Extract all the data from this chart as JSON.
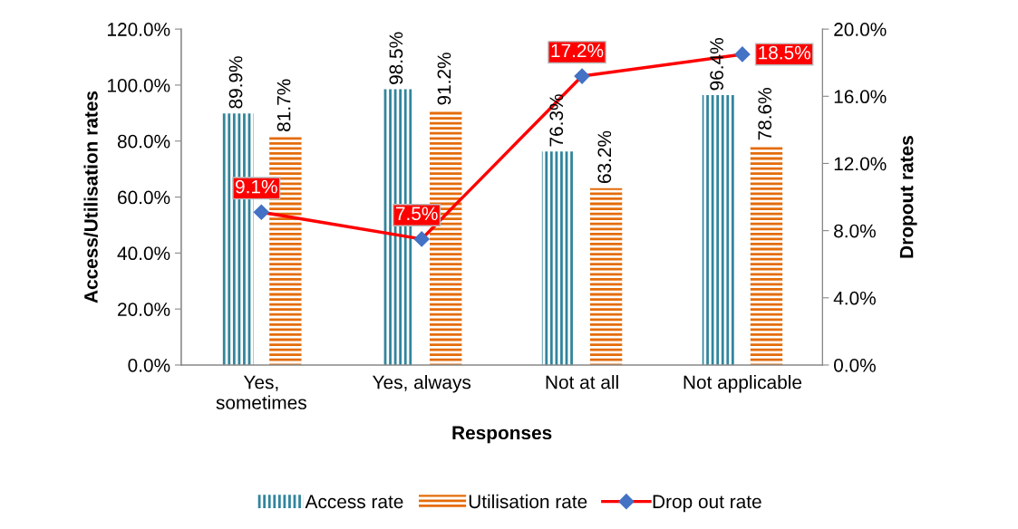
{
  "chart_data": {
    "type": "bar",
    "xlabel": "Responses",
    "ylabel": "Access/Utilisation rates",
    "y2label": "Dropout rates",
    "categories": [
      "Yes,\nsometimes",
      "Yes, always",
      "Not at all",
      "Not applicable"
    ],
    "series": [
      {
        "name": "Access rate",
        "color": "#31859c",
        "values": [
          89.9,
          98.5,
          76.3,
          96.4
        ],
        "value_labels": [
          "89.9%",
          "98.5%",
          "76.3%",
          "96.4%"
        ]
      },
      {
        "name": "Utilisation rate",
        "color": "#e46c0a",
        "values": [
          81.7,
          91.2,
          63.2,
          78.6
        ],
        "value_labels": [
          "81.7%",
          "91.2%",
          "63.2%",
          "78.6%"
        ]
      },
      {
        "name": "Drop out rate",
        "type": "line",
        "axis": "y2",
        "color": "#ff0000",
        "marker": "diamond",
        "values": [
          9.1,
          7.5,
          17.2,
          18.5
        ],
        "value_labels": [
          "9.1%",
          "7.5%",
          "17.2%",
          "18.5%"
        ]
      }
    ],
    "ylim": [
      0,
      120
    ],
    "yticks": [
      {
        "value": 0,
        "label": "0.0%"
      },
      {
        "value": 20,
        "label": "20.0%"
      },
      {
        "value": 40,
        "label": "40.0%"
      },
      {
        "value": 60,
        "label": "60.0%"
      },
      {
        "value": 80,
        "label": "80.0%"
      },
      {
        "value": 100,
        "label": "100.0%"
      },
      {
        "value": 120,
        "label": "120.0%"
      }
    ],
    "y2lim": [
      0,
      20
    ],
    "y2ticks": [
      {
        "value": 0,
        "label": "0.0%"
      },
      {
        "value": 4,
        "label": "4.0%"
      },
      {
        "value": 8,
        "label": "8.0%"
      },
      {
        "value": 12,
        "label": "12.0%"
      },
      {
        "value": 16,
        "label": "16.0%"
      },
      {
        "value": 20,
        "label": "20.0%"
      }
    ],
    "grid": false,
    "legend": "bottom"
  }
}
